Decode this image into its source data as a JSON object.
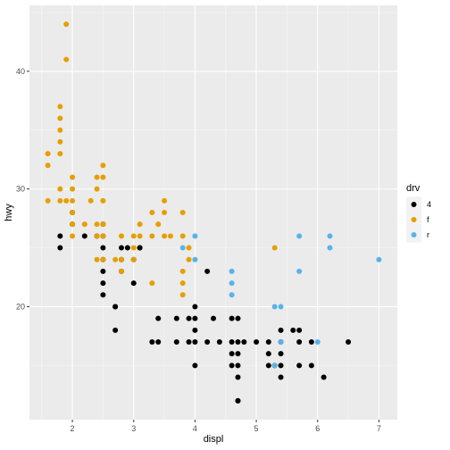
{
  "chart_data": {
    "type": "scatter",
    "title": "",
    "xlabel": "displ",
    "ylabel": "hwy",
    "xlim": [
      1.3,
      7.3
    ],
    "ylim": [
      10.4,
      45.6
    ],
    "x_ticks": [
      2,
      3,
      4,
      5,
      6,
      7
    ],
    "y_ticks": [
      20,
      30,
      40
    ],
    "grid": true,
    "legend": {
      "title": "drv",
      "placement": "right"
    },
    "series": [
      {
        "name": "4",
        "color": "#000000",
        "points": [
          [
            1.8,
            26
          ],
          [
            1.8,
            25
          ],
          [
            2.0,
            28
          ],
          [
            2.0,
            27
          ],
          [
            2.2,
            26
          ],
          [
            2.4,
            26
          ],
          [
            2.5,
            27
          ],
          [
            2.5,
            26
          ],
          [
            2.5,
            25
          ],
          [
            2.5,
            24
          ],
          [
            2.5,
            23
          ],
          [
            2.5,
            22
          ],
          [
            2.5,
            21
          ],
          [
            2.7,
            20
          ],
          [
            2.7,
            20
          ],
          [
            2.7,
            18
          ],
          [
            2.8,
            25
          ],
          [
            2.8,
            24
          ],
          [
            2.8,
            23
          ],
          [
            2.9,
            25
          ],
          [
            3.0,
            24
          ],
          [
            3.0,
            22
          ],
          [
            3.1,
            25
          ],
          [
            3.1,
            25
          ],
          [
            3.3,
            17
          ],
          [
            3.4,
            19
          ],
          [
            3.4,
            17
          ],
          [
            3.7,
            19
          ],
          [
            3.7,
            17
          ],
          [
            3.9,
            19
          ],
          [
            3.9,
            17
          ],
          [
            4.0,
            20
          ],
          [
            4.0,
            19
          ],
          [
            4.0,
            18
          ],
          [
            4.0,
            17
          ],
          [
            4.0,
            15
          ],
          [
            4.2,
            23
          ],
          [
            4.2,
            17
          ],
          [
            4.3,
            19
          ],
          [
            4.4,
            17
          ],
          [
            4.6,
            19
          ],
          [
            4.6,
            17
          ],
          [
            4.6,
            16
          ],
          [
            4.6,
            15
          ],
          [
            4.7,
            19
          ],
          [
            4.7,
            17
          ],
          [
            4.7,
            16
          ],
          [
            4.7,
            15
          ],
          [
            4.7,
            14
          ],
          [
            4.7,
            12
          ],
          [
            4.7,
            12
          ],
          [
            4.8,
            17
          ],
          [
            5.0,
            17
          ],
          [
            5.2,
            17
          ],
          [
            5.2,
            16
          ],
          [
            5.2,
            15
          ],
          [
            5.3,
            15
          ],
          [
            5.4,
            18
          ],
          [
            5.4,
            17
          ],
          [
            5.4,
            16
          ],
          [
            5.4,
            15
          ],
          [
            5.4,
            14
          ],
          [
            5.6,
            18
          ],
          [
            5.7,
            18
          ],
          [
            5.7,
            17
          ],
          [
            5.7,
            15
          ],
          [
            5.9,
            17
          ],
          [
            5.9,
            15
          ],
          [
            6.1,
            14
          ],
          [
            6.5,
            17
          ]
        ]
      },
      {
        "name": "f",
        "color": "#E69F00",
        "points": [
          [
            1.6,
            33
          ],
          [
            1.6,
            32
          ],
          [
            1.6,
            29
          ],
          [
            1.8,
            37
          ],
          [
            1.8,
            36
          ],
          [
            1.8,
            35
          ],
          [
            1.8,
            34
          ],
          [
            1.8,
            33
          ],
          [
            1.8,
            30
          ],
          [
            1.8,
            29
          ],
          [
            1.9,
            44
          ],
          [
            1.9,
            41
          ],
          [
            1.9,
            29
          ],
          [
            2.0,
            31
          ],
          [
            2.0,
            30
          ],
          [
            2.0,
            29
          ],
          [
            2.0,
            28
          ],
          [
            2.0,
            27
          ],
          [
            2.0,
            26
          ],
          [
            2.2,
            27
          ],
          [
            2.3,
            29
          ],
          [
            2.4,
            31
          ],
          [
            2.4,
            30
          ],
          [
            2.4,
            27
          ],
          [
            2.4,
            26
          ],
          [
            2.4,
            24
          ],
          [
            2.5,
            32
          ],
          [
            2.5,
            31
          ],
          [
            2.5,
            29
          ],
          [
            2.5,
            27
          ],
          [
            2.5,
            26
          ],
          [
            2.5,
            24
          ],
          [
            2.7,
            24
          ],
          [
            2.8,
            26
          ],
          [
            2.8,
            24
          ],
          [
            2.8,
            23
          ],
          [
            3.0,
            26
          ],
          [
            3.0,
            24
          ],
          [
            3.0,
            25
          ],
          [
            3.1,
            27
          ],
          [
            3.1,
            26
          ],
          [
            3.3,
            28
          ],
          [
            3.3,
            22
          ],
          [
            3.3,
            26
          ],
          [
            3.4,
            27
          ],
          [
            3.5,
            29
          ],
          [
            3.5,
            28
          ],
          [
            3.5,
            26
          ],
          [
            3.6,
            26
          ],
          [
            3.8,
            28
          ],
          [
            3.8,
            26
          ],
          [
            3.8,
            23
          ],
          [
            3.8,
            22
          ],
          [
            3.8,
            21
          ],
          [
            3.9,
            24
          ],
          [
            3.9,
            25
          ],
          [
            5.3,
            25
          ]
        ]
      },
      {
        "name": "r",
        "color": "#56B4E9",
        "points": [
          [
            3.8,
            25
          ],
          [
            4.0,
            26
          ],
          [
            4.0,
            24
          ],
          [
            4.6,
            23
          ],
          [
            4.6,
            22
          ],
          [
            4.6,
            21
          ],
          [
            5.3,
            20
          ],
          [
            5.3,
            15
          ],
          [
            5.4,
            20
          ],
          [
            5.4,
            17
          ],
          [
            5.7,
            26
          ],
          [
            5.7,
            23
          ],
          [
            6.0,
            17
          ],
          [
            6.2,
            26
          ],
          [
            6.2,
            25
          ],
          [
            7.0,
            24
          ]
        ]
      }
    ]
  }
}
